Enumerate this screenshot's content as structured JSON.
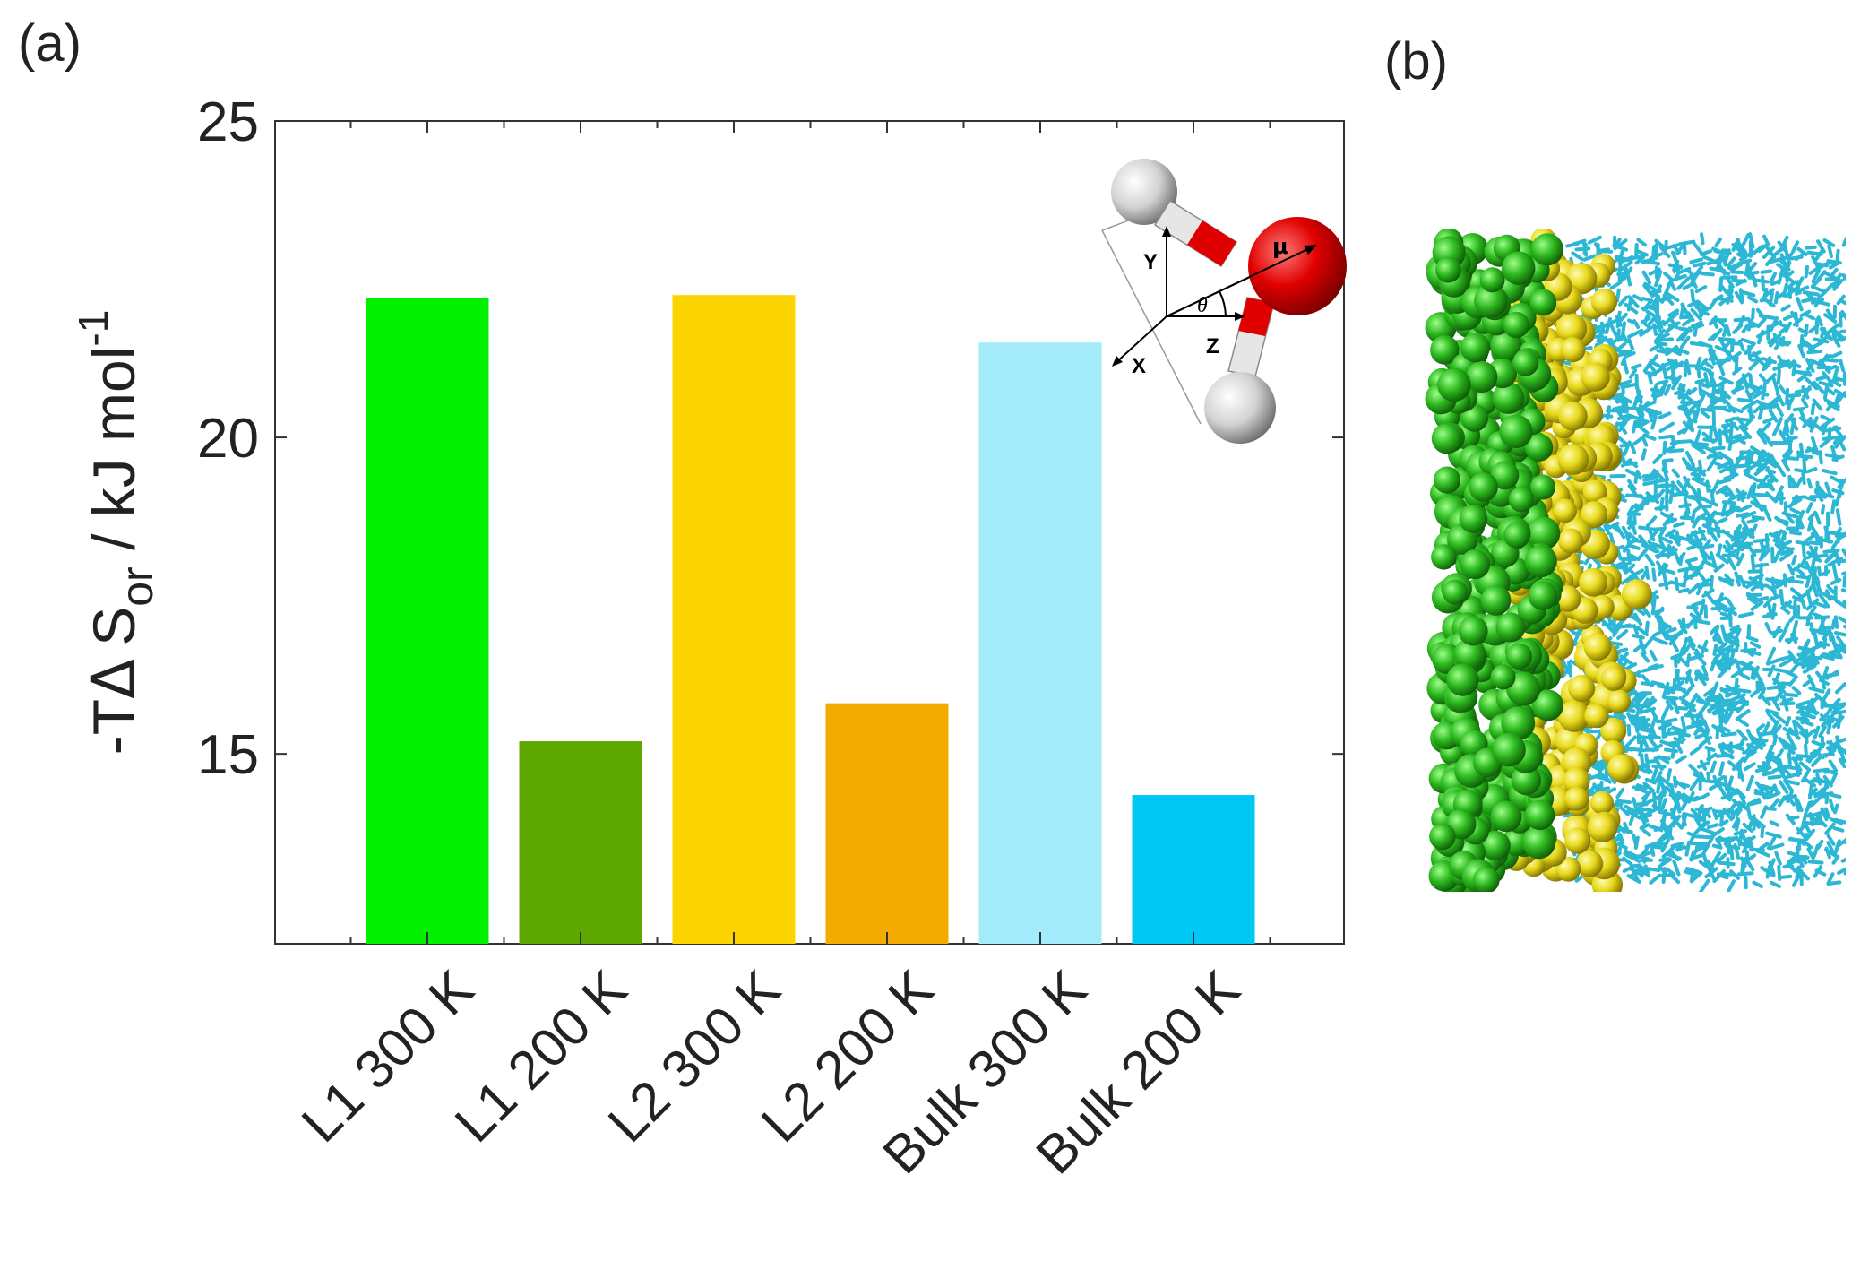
{
  "panel_a_label": "(a)",
  "panel_b_label": "(b)",
  "chart_data": {
    "type": "bar",
    "ylabel": {
      "prefix": "-T",
      "delta": "Δ",
      "symbol": "S",
      "subscript": "or",
      "units": " / kJ mol",
      "superscript": "-1"
    },
    "ylim": [
      12,
      25
    ],
    "yticks": [
      15,
      20,
      25
    ],
    "grid": false,
    "categories": [
      "L1 300 K",
      "L1 200 K",
      "L2 300 K",
      "L2 200 K",
      "Bulk 300 K",
      "Bulk 200 K"
    ],
    "values": [
      22.2,
      15.2,
      22.25,
      15.8,
      21.5,
      14.35
    ],
    "colors": [
      "#00f000",
      "#5fa800",
      "#fcd500",
      "#f3ab00",
      "#a4ebfb",
      "#00c8f5"
    ]
  },
  "inset": {
    "axis_labels": [
      "Y",
      "X",
      "Z"
    ],
    "angle_label": "θ",
    "dipole_label": "μ",
    "atom_colors": {
      "oxygen": "#e00000",
      "hydrogen": "#e6e6e6"
    }
  },
  "snapshot": {
    "colors": {
      "layer1": "#2db81f",
      "layer2": "#e8d91b",
      "bulk": "#2cb7d4"
    }
  }
}
